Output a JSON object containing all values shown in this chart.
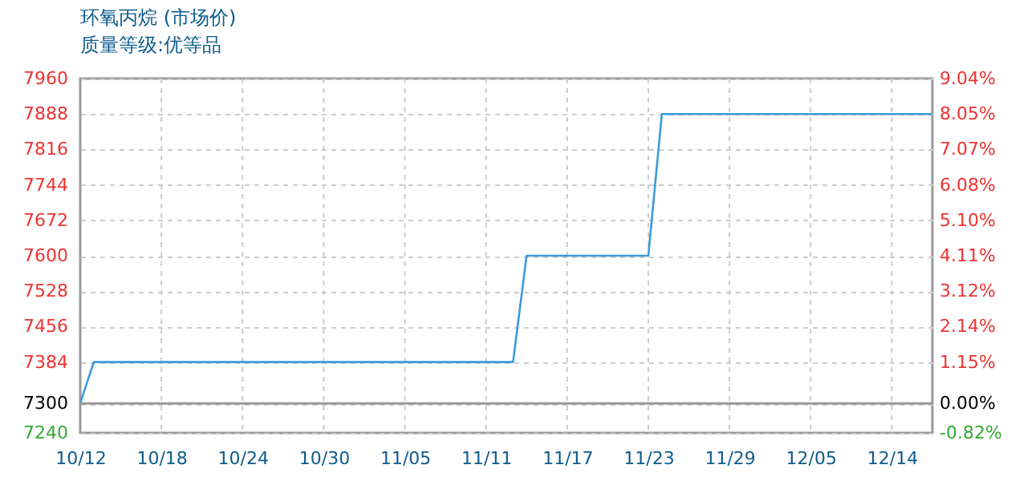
{
  "chart_data": {
    "type": "line",
    "title": "环氧丙烷 (市场价)",
    "subtitle": "质量等级:优等品",
    "categories": [
      "10/12",
      null,
      null,
      null,
      null,
      null,
      "10/18",
      null,
      null,
      null,
      null,
      null,
      "10/24",
      null,
      null,
      null,
      null,
      null,
      "10/30",
      null,
      null,
      null,
      null,
      null,
      "11/05",
      null,
      null,
      null,
      null,
      null,
      "11/11",
      null,
      null,
      null,
      null,
      null,
      "11/17",
      null,
      null,
      null,
      null,
      null,
      "11/23",
      null,
      null,
      null,
      null,
      null,
      "11/29",
      null,
      null,
      null,
      null,
      null,
      "12/05",
      null,
      null,
      null,
      null,
      null,
      "12/14",
      null,
      null,
      null
    ],
    "series": [
      {
        "color": "#3a9ad9",
        "values": [
          7300,
          7384,
          7384,
          7384,
          7384,
          7384,
          7384,
          7384,
          7384,
          7384,
          7384,
          7384,
          7384,
          7384,
          7384,
          7384,
          7384,
          7384,
          7384,
          7384,
          7384,
          7384,
          7384,
          7384,
          7384,
          7384,
          7384,
          7384,
          7384,
          7384,
          7384,
          7384,
          7384,
          7600,
          7600,
          7600,
          7600,
          7600,
          7600,
          7600,
          7600,
          7600,
          7600,
          7888,
          7888,
          7888,
          7888,
          7888,
          7888,
          7888,
          7888,
          7888,
          7888,
          7888,
          7888,
          7888,
          7888,
          7888,
          7888,
          7888,
          7888,
          7888,
          7888,
          7888
        ]
      }
    ],
    "ylim": [
      7240,
      7960
    ],
    "yticks": [
      7240,
      7300,
      7384,
      7456,
      7528,
      7600,
      7672,
      7744,
      7816,
      7888,
      7960
    ],
    "y2lim": [
      -0.82,
      9.04
    ],
    "y2ticks": [
      {
        "value": -0.82,
        "label": "-0.82%"
      },
      {
        "value": 0,
        "label": "0.00%"
      },
      {
        "value": 1.15,
        "label": "1.15%"
      },
      {
        "value": 2.14,
        "label": "2.14%"
      },
      {
        "value": 3.12,
        "label": "3.12%"
      },
      {
        "value": 4.11,
        "label": "4.11%"
      },
      {
        "value": 5.1,
        "label": "5.10%"
      },
      {
        "value": 6.08,
        "label": "6.08%"
      },
      {
        "value": 7.07,
        "label": "7.07%"
      },
      {
        "value": 8.05,
        "label": "8.05%"
      },
      {
        "value": 9.04,
        "label": "9.04%"
      }
    ],
    "ref_lines": [
      {
        "axis": "y2",
        "value": 0,
        "color": "#999999",
        "line_style": "solid"
      }
    ],
    "grid": true,
    "line_style": "solid",
    "marker": "none"
  }
}
